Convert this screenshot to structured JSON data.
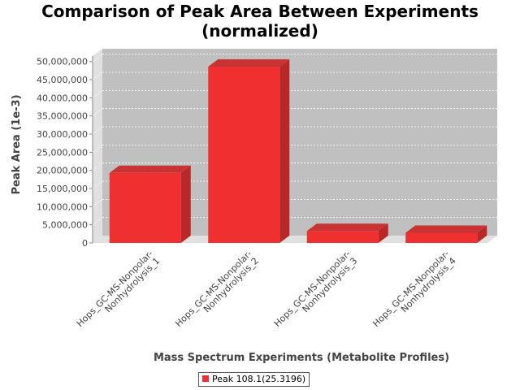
{
  "chart_data": {
    "type": "bar",
    "title_lines": [
      "Comparison of Peak Area Between Experiments",
      "(normalized)"
    ],
    "xlabel": "Mass Spectrum Experiments (Metabolite Profiles)",
    "ylabel": "Peak Area (1e-3)",
    "categories": [
      [
        "Hops_GC-MS-Nonpolar-",
        "Nonhydrolysis_1"
      ],
      [
        "Hops_GC-MS-Nonpolar-",
        "Nonhydrolysis_2"
      ],
      [
        "Hops_GC-MS-Nonpolar-",
        "Nonhydrolysis_3"
      ],
      [
        "Hops_GC-MS-Nonpolar-",
        "Nonhydrolysis_4"
      ]
    ],
    "series": [
      {
        "name": "Peak 108.1(25.3196)",
        "values": [
          19300000,
          48600000,
          3300000,
          2800000
        ]
      }
    ],
    "ylim": [
      0,
      51500000
    ],
    "yticks": [
      0,
      5000000,
      10000000,
      15000000,
      20000000,
      25000000,
      30000000,
      35000000,
      40000000,
      45000000,
      50000000
    ],
    "ytick_labels": [
      "0",
      "5,000,000",
      "10,000,000",
      "15,000,000",
      "20,000,000",
      "25,000,000",
      "30,000,000",
      "35,000,000",
      "40,000,000",
      "45,000,000",
      "50,000,000"
    ],
    "grid": true,
    "legend_position": "bottom-center",
    "colors": {
      "bar": "#f03030",
      "bar_side": "#b82828",
      "bar_top": "#c83434",
      "plot_bg": "#c0c0c0",
      "wall": "#e0e0e0"
    }
  }
}
